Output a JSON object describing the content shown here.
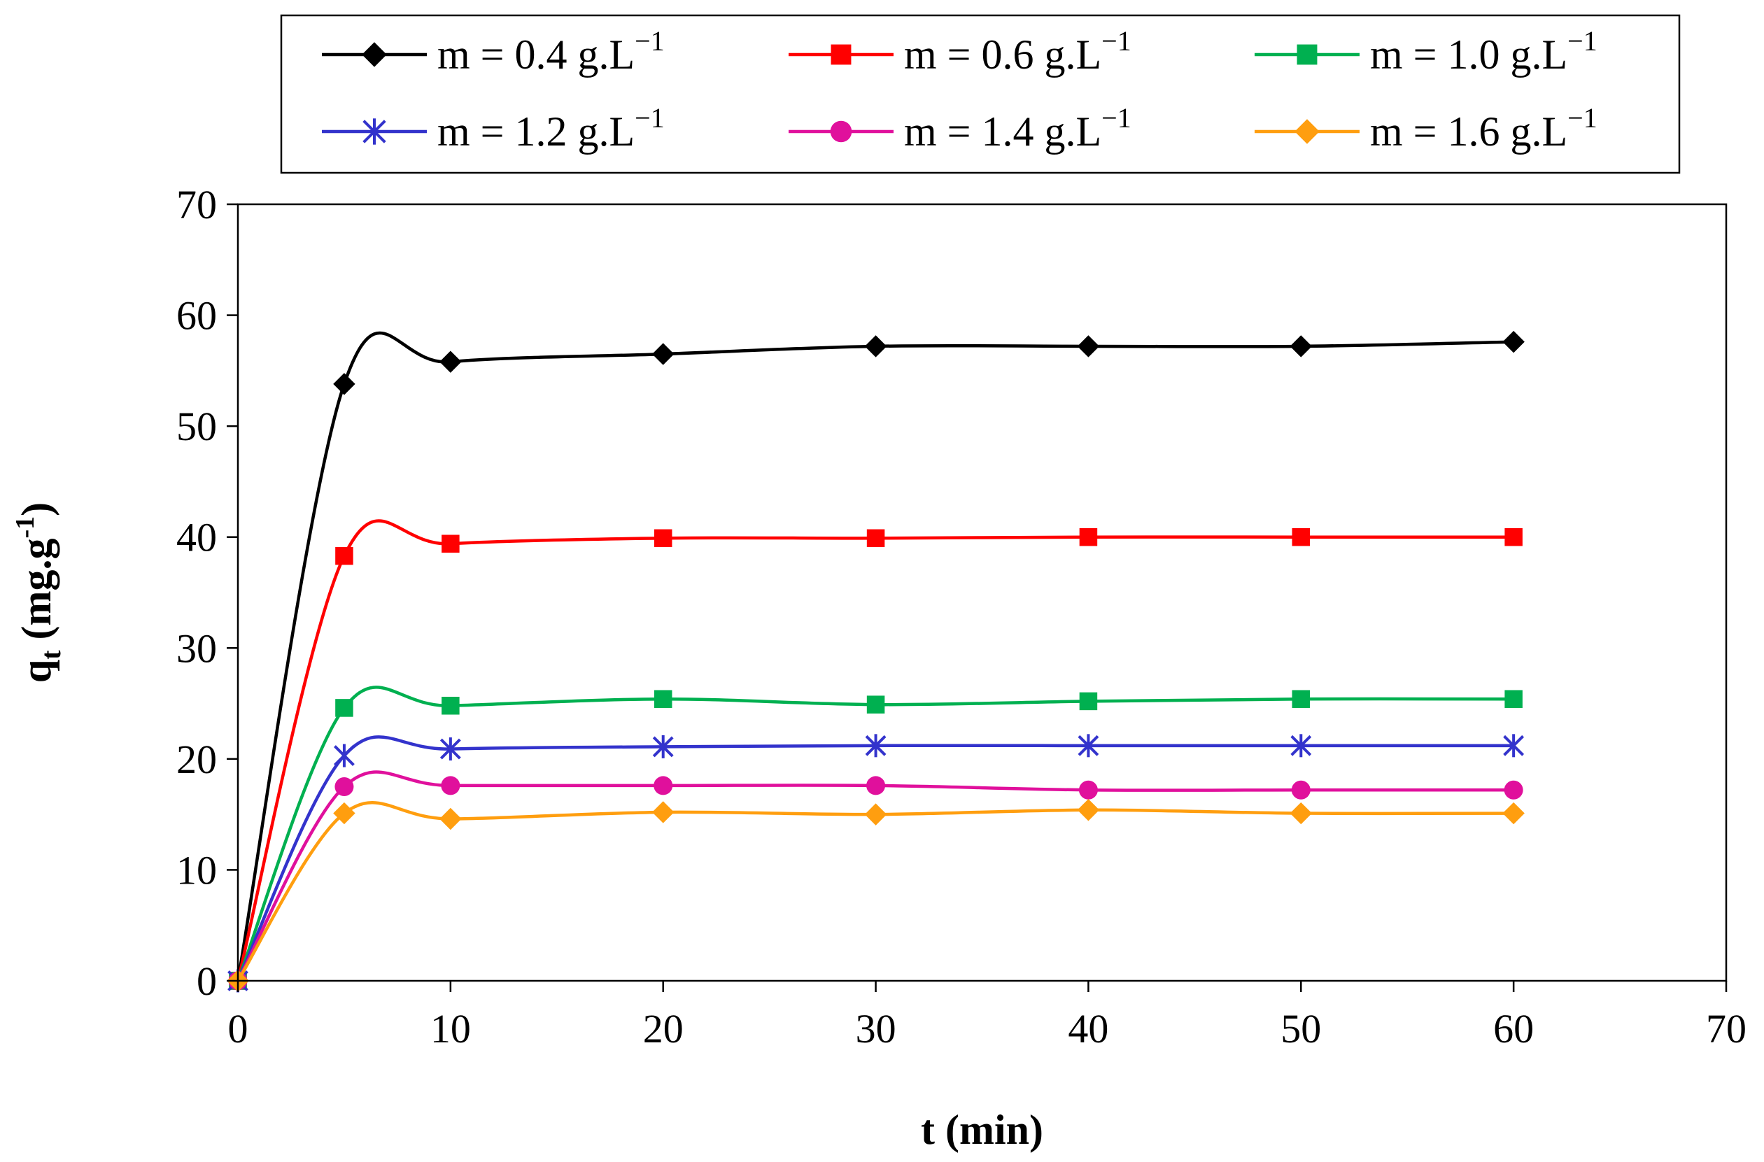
{
  "chart_data": {
    "type": "line",
    "title": "",
    "xlabel": "t (min)",
    "ylabel": {
      "main": "q",
      "sub": "t",
      "unit_prefix": " (mg.g",
      "unit_sup": "-1",
      "unit_suffix": ")"
    },
    "xlim": [
      0,
      70
    ],
    "ylim": [
      0,
      70
    ],
    "xticks": [
      0,
      10,
      20,
      30,
      40,
      50,
      60,
      70
    ],
    "yticks": [
      0,
      10,
      20,
      30,
      40,
      50,
      60,
      70
    ],
    "x": [
      0,
      5,
      10,
      20,
      30,
      40,
      50,
      60
    ],
    "grid": false,
    "smooth": true,
    "legend_position": "top, above plot, 3 columns",
    "series": [
      {
        "name": "m = 0.4 g.L⁻¹",
        "label_main": "m = 0.4 g.L",
        "label_sup": "−1",
        "color": "#000000",
        "marker": "diamond",
        "values": [
          0,
          53.8,
          55.8,
          56.5,
          57.2,
          57.2,
          57.2,
          57.6
        ]
      },
      {
        "name": "m = 0.6 g.L⁻¹",
        "label_main": "m = 0.6 g.L",
        "label_sup": "−1",
        "color": "#ff0000",
        "marker": "square",
        "values": [
          0,
          38.3,
          39.4,
          39.9,
          39.9,
          40.0,
          40.0,
          40.0
        ]
      },
      {
        "name": "m = 1.0 g.L⁻¹",
        "label_main": "m = 1.0 g.L",
        "label_sup": "−1",
        "color": "#00b050",
        "marker": "square",
        "values": [
          0,
          24.6,
          24.8,
          25.4,
          24.9,
          25.2,
          25.4,
          25.4
        ]
      },
      {
        "name": "m = 1.2 g.L⁻¹",
        "label_main": "m = 1.2 g.L",
        "label_sup": "−1",
        "color": "#3333cc",
        "marker": "asterisk",
        "values": [
          0,
          20.3,
          20.9,
          21.1,
          21.2,
          21.2,
          21.2,
          21.2
        ]
      },
      {
        "name": "m = 1.4 g.L⁻¹",
        "label_main": "m = 1.4 g.L",
        "label_sup": "−1",
        "color": "#e0109c",
        "marker": "circle",
        "values": [
          0,
          17.5,
          17.6,
          17.6,
          17.6,
          17.2,
          17.2,
          17.2
        ]
      },
      {
        "name": "m = 1.6 g.L⁻¹",
        "label_main": "m = 1.6 g.L",
        "label_sup": "−1",
        "color": "#ff9e0f",
        "marker": "diamond",
        "values": [
          0,
          15.1,
          14.6,
          15.2,
          15.0,
          15.4,
          15.1,
          15.1
        ]
      }
    ]
  }
}
